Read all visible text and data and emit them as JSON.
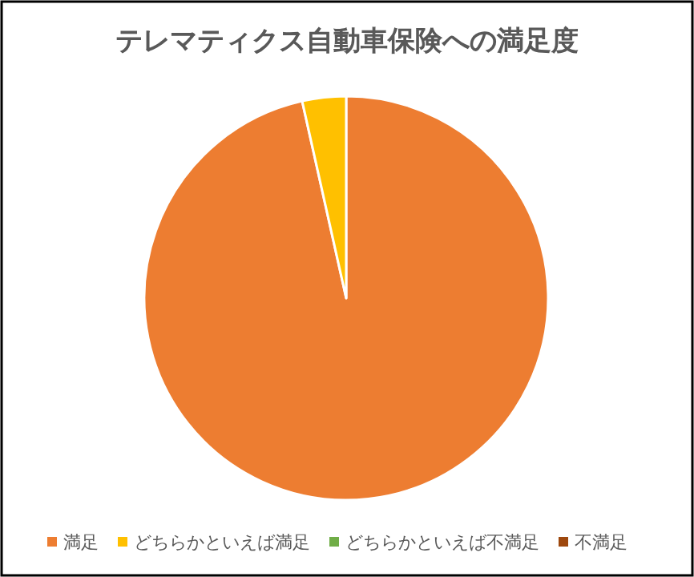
{
  "chart_data": {
    "type": "pie",
    "title": "テレマティクス自動車保険への満足度",
    "categories": [
      "満足",
      "どちらかといえば満足",
      "どちらかといえば不満足",
      "不満足"
    ],
    "values": [
      96.5,
      3.5,
      0,
      0
    ],
    "colors": [
      "#ed7d31",
      "#ffc000",
      "#70ad47",
      "#9e480e"
    ],
    "legend": "bottom"
  }
}
